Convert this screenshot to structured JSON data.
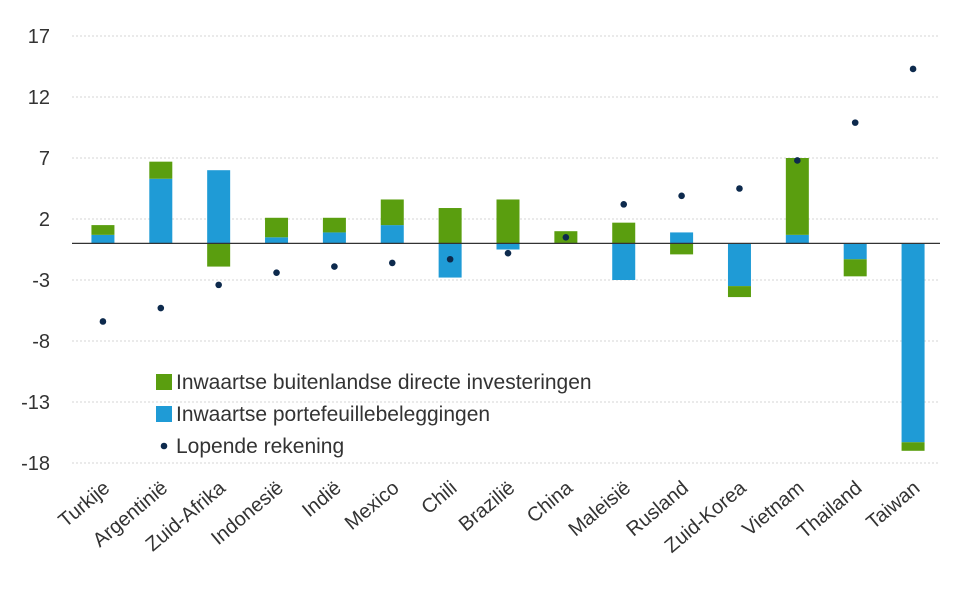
{
  "chart_data": {
    "type": "bar",
    "stacked": true,
    "categories": [
      "Turkije",
      "Argentinië",
      "Zuid-Afrika",
      "Indonesië",
      "Indië",
      "Mexico",
      "Chili",
      "Brazilië",
      "China",
      "Maleisië",
      "Rusland",
      "Zuid-Korea",
      "Vietnam",
      "Thailand",
      "Taiwan"
    ],
    "series": [
      {
        "name": "Inwaartse buitenlandse directe investeringen",
        "kind": "bar",
        "color": "#5a9e0f",
        "values": [
          0.8,
          1.4,
          -1.9,
          1.6,
          1.2,
          2.1,
          2.9,
          3.6,
          1.0,
          1.7,
          -0.9,
          -0.9,
          6.3,
          -1.4,
          -0.7
        ]
      },
      {
        "name": "Inwaartse portefeuillebeleggingen",
        "kind": "bar",
        "color": "#1f9bd6",
        "values": [
          0.7,
          5.3,
          6.0,
          0.5,
          0.9,
          1.5,
          -2.8,
          -0.5,
          0.0,
          -3.0,
          0.9,
          -3.5,
          0.7,
          -1.3,
          -16.3
        ]
      },
      {
        "name": "Lopende rekening",
        "kind": "scatter",
        "color": "#0d2a4d",
        "values": [
          -6.4,
          -5.3,
          -3.4,
          -2.4,
          -1.9,
          -1.6,
          -1.3,
          -0.8,
          0.5,
          3.2,
          3.9,
          4.5,
          6.8,
          9.9,
          14.3
        ]
      }
    ],
    "yticks": [
      "17",
      "12",
      "7",
      "2",
      "-3",
      "-8",
      "-13",
      "-18"
    ],
    "ylim": [
      -18,
      17
    ],
    "grid": "horizontal-dashed",
    "legend_position": "bottom-left-inside"
  }
}
